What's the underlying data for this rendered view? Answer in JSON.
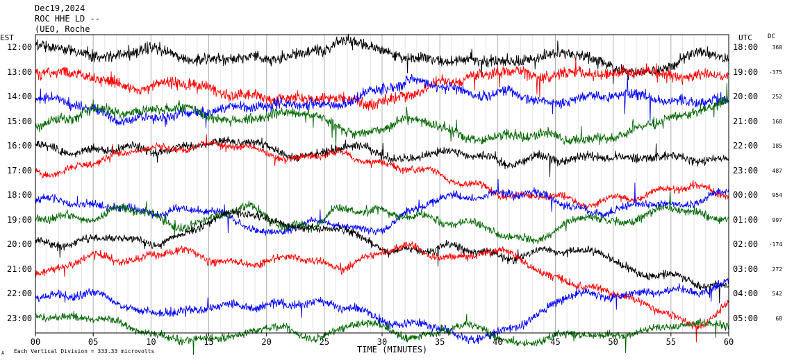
{
  "header": {
    "date": "Dec19,2024",
    "station": "ROC HHE LD --",
    "location": "(UEO, Roche"
  },
  "labels": {
    "left_tz": "EST",
    "right_tz": "UTC",
    "dc_header": "DC",
    "corner_mark": "A",
    "footnote": "Each Vertical Division =  333.33 microvolts"
  },
  "chart_data": {
    "type": "line",
    "title": "",
    "xlabel": "TIME (MINUTES)",
    "xlim": [
      0,
      60
    ],
    "x_ticks": [
      "00",
      "05",
      "10",
      "15",
      "20",
      "25",
      "30",
      "35",
      "40",
      "45",
      "50",
      "55",
      "60"
    ],
    "trace_colors": [
      "#000000",
      "#ff0000",
      "#0000ff",
      "#006600"
    ],
    "hours_est": [
      "12:00",
      "13:00",
      "14:00",
      "15:00",
      "16:00",
      "17:00",
      "18:00",
      "19:00",
      "20:00",
      "21:00",
      "22:00",
      "23:00"
    ],
    "hours_utc": [
      "18:00",
      "19:00",
      "20:00",
      "21:00",
      "22:00",
      "23:00",
      "00:00",
      "01:00",
      "02:00",
      "03:00",
      "04:00",
      "05:00"
    ],
    "dc_offsets": [
      "360",
      "-375",
      "252",
      "168",
      "185",
      "487",
      "954",
      "997",
      "-174",
      "272",
      "542",
      "68"
    ],
    "vertical_division_microvolts": 333.33
  }
}
